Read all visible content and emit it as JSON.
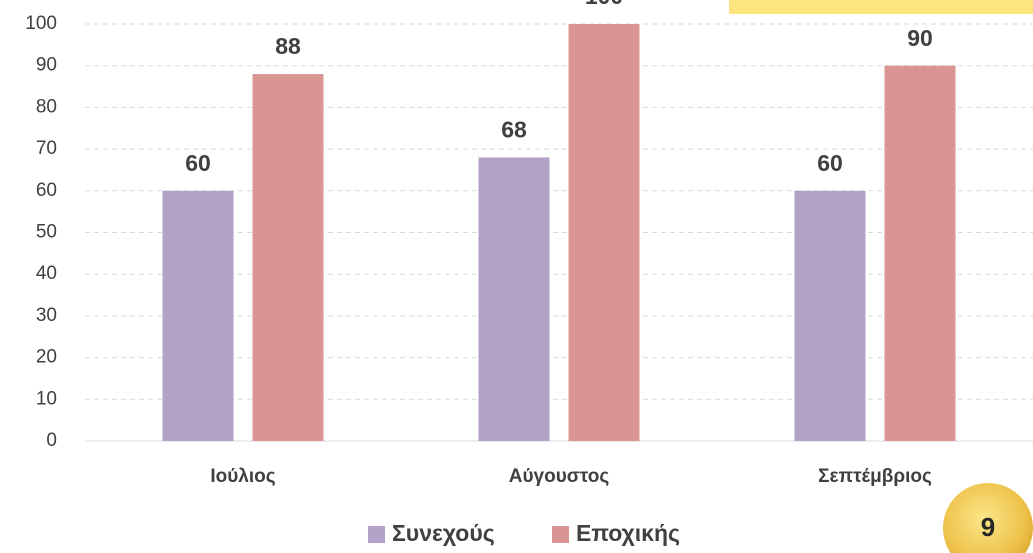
{
  "chart_data": {
    "type": "bar",
    "categories": [
      "Ιούλιος",
      "Αύγουστος",
      "Σεπτέμβριος"
    ],
    "series": [
      {
        "name": "Συνεχούς",
        "color": "#b3a2c7",
        "values": [
          60,
          68,
          60
        ]
      },
      {
        "name": "Εποχικής",
        "color": "#d99594",
        "values": [
          88,
          100,
          90
        ]
      }
    ],
    "ylim": [
      0,
      100
    ],
    "yticks": [
      0,
      10,
      20,
      30,
      40,
      50,
      60,
      70,
      80,
      90,
      100
    ],
    "grid": true,
    "legend": "bottom"
  },
  "slide": {
    "page_number": "9"
  }
}
